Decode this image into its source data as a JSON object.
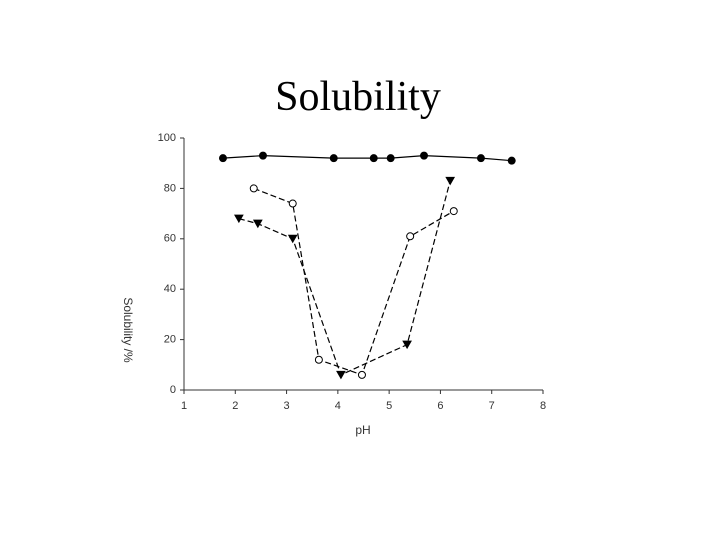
{
  "chart_data": {
    "type": "line",
    "title": "Solubility",
    "xlabel": "pH",
    "ylabel": "Solubility /%",
    "xlim": [
      1,
      8
    ],
    "xticks": [
      1,
      2,
      3,
      4,
      5,
      6,
      7,
      8
    ],
    "ylim": [
      0,
      100
    ],
    "yticks": [
      0,
      20,
      40,
      60,
      80,
      100
    ],
    "grid": false,
    "series": [
      {
        "color": "#000000",
        "marker": "filled-circle",
        "dashed": false,
        "x": [
          1.76,
          2.54,
          3.92,
          4.7,
          5.03,
          5.68,
          6.79,
          7.39
        ],
        "values": [
          92,
          93,
          92,
          92,
          92,
          93,
          92,
          91
        ]
      },
      {
        "color": "#000000",
        "marker": "open-circle",
        "dashed": true,
        "x": [
          2.36,
          3.12,
          3.63,
          4.47,
          5.41,
          6.26
        ],
        "values": [
          80,
          74,
          12,
          6,
          61,
          71
        ]
      },
      {
        "color": "#000000",
        "marker": "filled-triangle-down",
        "dashed": true,
        "x": [
          2.07,
          2.44,
          3.12,
          4.06,
          5.35,
          6.19
        ],
        "values": [
          68,
          66,
          60,
          6,
          18,
          83
        ]
      }
    ]
  }
}
